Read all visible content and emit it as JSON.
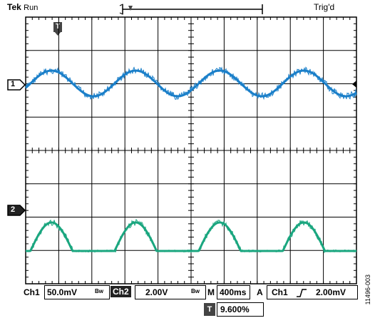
{
  "header": {
    "brand": "Tek",
    "run_state": "Run",
    "trigger_state": "Trig'd",
    "trigger_marker": "T"
  },
  "channels": {
    "ch1_marker": "1",
    "ch2_marker": "2",
    "ch1_color": "#1a7fc9",
    "ch2_color": "#1aa67f"
  },
  "readout": {
    "ch1_label": "Ch1",
    "ch1_scale": "50.0mV",
    "ch1_bw": "Bw",
    "ch2_label": "Ch2",
    "ch2_scale": "2.00V",
    "ch2_bw": "Bw",
    "timebase_label": "M",
    "timebase_value": "400ms",
    "trigger_mode": "A",
    "trigger_source": "Ch1",
    "trigger_slope_icon": "rising-edge-icon",
    "trigger_level": "2.00mV",
    "position_marker": "T",
    "position_value": "9.600%"
  },
  "figure_id": "11496-003"
}
